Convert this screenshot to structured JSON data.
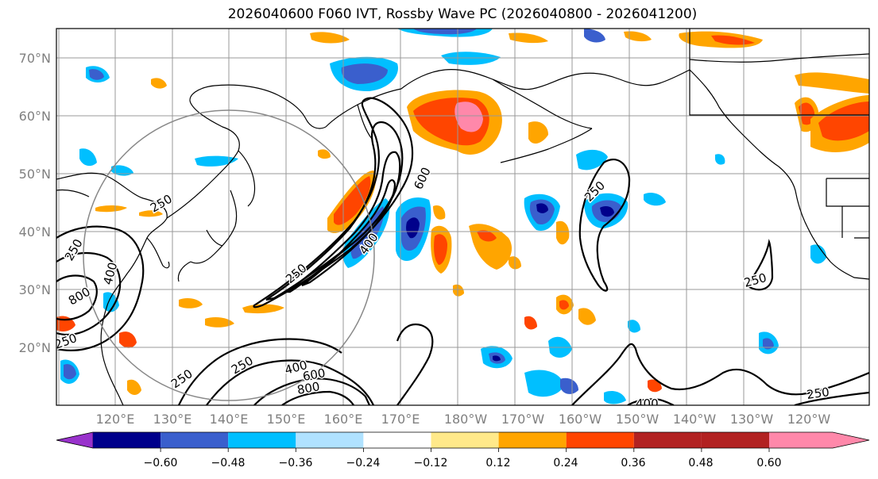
{
  "title": "2026040600 F060 IVT, Rossby Wave PC (2026040800 - 2026041200)",
  "latitude_labels": [
    "70°N",
    "60°N",
    "50°N",
    "40°N",
    "30°N",
    "20°N"
  ],
  "longitude_labels": [
    "120°E",
    "130°E",
    "140°E",
    "150°E",
    "160°E",
    "170°E",
    "180°W",
    "170°W",
    "160°W",
    "150°W",
    "140°W",
    "130°W",
    "120°W"
  ],
  "contour_labels": [
    "250",
    "250",
    "250",
    "400",
    "400",
    "800",
    "600",
    "250",
    "250",
    "250",
    "250",
    "250",
    "400",
    "600",
    "800",
    "400",
    "250"
  ],
  "colorbar": {
    "ticks": [
      "−0.60",
      "−0.48",
      "−0.36",
      "−0.24",
      "−0.12",
      "0.12",
      "0.24",
      "0.36",
      "0.48",
      "0.60"
    ],
    "colors": [
      "#9932cc",
      "#00008b",
      "#3a5fcd",
      "#00bfff",
      "#b0e2ff",
      "#ffffff",
      "#ffe98a",
      "#ffa500",
      "#ff4500",
      "#b22222",
      "#ff88aa"
    ]
  },
  "colors": {
    "grid": "#999999",
    "coast": "#000000",
    "contour": "#000000",
    "circle": "#888888"
  }
}
